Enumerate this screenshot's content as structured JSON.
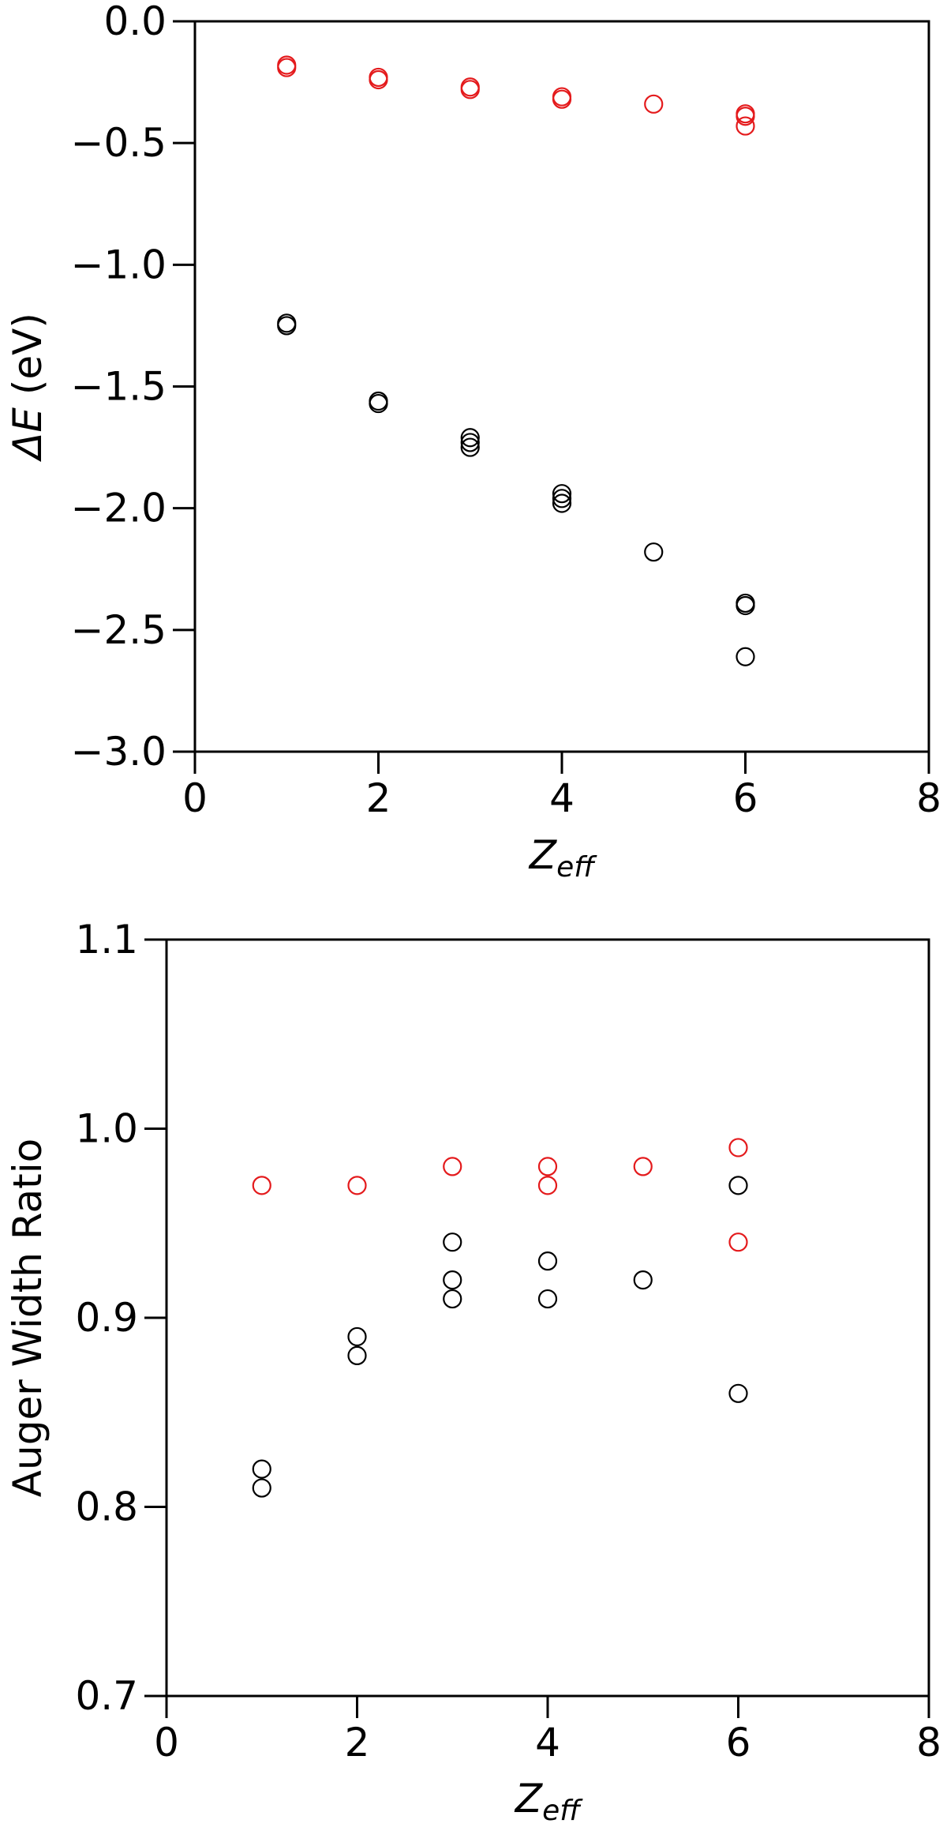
{
  "chart_data": [
    {
      "type": "scatter",
      "title": "",
      "xlabel": {
        "symbol": "Z",
        "subscript": "eff"
      },
      "ylabel": {
        "symbol": "ΔE",
        "unit": " (eV)"
      },
      "xlim": [
        0,
        8
      ],
      "ylim": [
        -3.0,
        0.0
      ],
      "xticks": [
        0,
        2,
        4,
        6,
        8
      ],
      "yticks": [
        0.0,
        -0.5,
        -1.0,
        -1.5,
        -2.0,
        -2.5,
        -3.0
      ],
      "xtick_labels": [
        "0",
        "2",
        "4",
        "6",
        "8"
      ],
      "ytick_labels": [
        "0.0",
        "−0.5",
        "−1.0",
        "−1.5",
        "−2.0",
        "−2.5",
        "−3.0"
      ],
      "grid": false,
      "series": [
        {
          "color": "#e41a1c",
          "marker": "open-circle",
          "points": [
            [
              1,
              -0.18
            ],
            [
              1,
              -0.19
            ],
            [
              2,
              -0.23
            ],
            [
              2,
              -0.24
            ],
            [
              3,
              -0.27
            ],
            [
              3,
              -0.28
            ],
            [
              4,
              -0.31
            ],
            [
              4,
              -0.32
            ],
            [
              5,
              -0.34
            ],
            [
              6,
              -0.38
            ],
            [
              6,
              -0.39
            ],
            [
              6,
              -0.43
            ]
          ]
        },
        {
          "color": "#000000",
          "marker": "open-circle",
          "points": [
            [
              1,
              -1.24
            ],
            [
              1,
              -1.25
            ],
            [
              2,
              -1.56
            ],
            [
              2,
              -1.57
            ],
            [
              3,
              -1.71
            ],
            [
              3,
              -1.73
            ],
            [
              3,
              -1.75
            ],
            [
              4,
              -1.94
            ],
            [
              4,
              -1.96
            ],
            [
              4,
              -1.98
            ],
            [
              5,
              -2.18
            ],
            [
              6,
              -2.39
            ],
            [
              6,
              -2.4
            ],
            [
              6,
              -2.61
            ]
          ]
        }
      ]
    },
    {
      "type": "scatter",
      "title": "",
      "xlabel": {
        "symbol": "Z",
        "subscript": "eff"
      },
      "ylabel": {
        "text": "Auger Width Ratio"
      },
      "xlim": [
        0,
        8
      ],
      "ylim": [
        0.7,
        1.1
      ],
      "xticks": [
        0,
        2,
        4,
        6,
        8
      ],
      "yticks": [
        0.7,
        0.8,
        0.9,
        1.0,
        1.1
      ],
      "xtick_labels": [
        "0",
        "2",
        "4",
        "6",
        "8"
      ],
      "ytick_labels": [
        "0.7",
        "0.8",
        "0.9",
        "1.0",
        "1.1"
      ],
      "grid": false,
      "series": [
        {
          "color": "#e41a1c",
          "marker": "open-circle",
          "points": [
            [
              1,
              0.97
            ],
            [
              2,
              0.97
            ],
            [
              3,
              0.98
            ],
            [
              4,
              0.98
            ],
            [
              4,
              0.97
            ],
            [
              5,
              0.98
            ],
            [
              6,
              0.99
            ],
            [
              6,
              0.94
            ]
          ]
        },
        {
          "color": "#000000",
          "marker": "open-circle",
          "points": [
            [
              1,
              0.82
            ],
            [
              1,
              0.81
            ],
            [
              2,
              0.89
            ],
            [
              2,
              0.88
            ],
            [
              3,
              0.94
            ],
            [
              3,
              0.92
            ],
            [
              3,
              0.91
            ],
            [
              4,
              0.93
            ],
            [
              4,
              0.91
            ],
            [
              5,
              0.92
            ],
            [
              6,
              0.97
            ],
            [
              6,
              0.86
            ]
          ]
        }
      ]
    }
  ]
}
